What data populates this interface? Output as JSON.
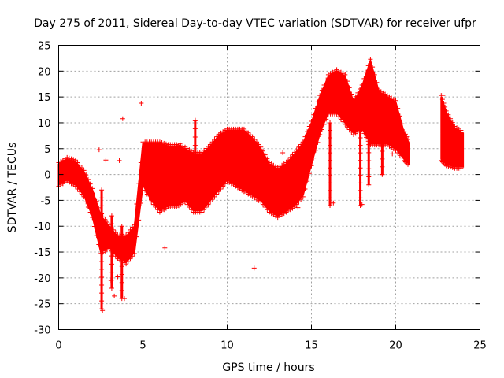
{
  "chart_data": {
    "type": "scatter",
    "title": "Day 275 of 2011, Sidereal Day-to-day VTEC variation (SDTVAR) for receiver ufpr",
    "xlabel": "GPS time / hours",
    "ylabel": "SDTVAR / TECUs",
    "xlim": [
      0,
      25
    ],
    "ylim": [
      -30,
      25
    ],
    "x_ticks": [
      "0",
      "5",
      "10",
      "15",
      "20",
      "25"
    ],
    "y_ticks": [
      "25",
      "20",
      "15",
      "10",
      "5",
      "0",
      "-5",
      "-10",
      "-15",
      "-20",
      "-25",
      "-30"
    ],
    "grid": true,
    "series_color": "#ff0000",
    "marker": "plus",
    "band": {
      "x": [
        0.0,
        0.5,
        1.0,
        1.5,
        2.0,
        2.5,
        3.0,
        3.5,
        4.0,
        4.5,
        5.0,
        5.5,
        6.0,
        6.5,
        7.0,
        7.5,
        8.0,
        8.5,
        9.0,
        9.5,
        10.0,
        10.5,
        11.0,
        11.5,
        12.0,
        12.5,
        13.0,
        13.5,
        14.0,
        14.5,
        15.0,
        15.5,
        16.0,
        16.5,
        17.0,
        17.5,
        18.0,
        18.5,
        19.0,
        19.5,
        20.0,
        20.5,
        20.8
      ],
      "top": [
        2.0,
        3.0,
        2.5,
        0.5,
        -3.0,
        -8.0,
        -10.0,
        -12.0,
        -12.0,
        -10.0,
        6.0,
        6.0,
        6.0,
        5.5,
        5.5,
        5.0,
        4.0,
        4.0,
        5.5,
        7.5,
        8.5,
        8.5,
        8.5,
        7.0,
        5.0,
        2.0,
        1.0,
        2.0,
        4.0,
        6.0,
        10.0,
        15.0,
        19.0,
        20.0,
        19.0,
        14.0,
        17.0,
        22.0,
        16.0,
        15.0,
        14.0,
        8.0,
        6.0
      ],
      "bot": [
        -2.0,
        -1.0,
        -2.0,
        -4.0,
        -8.0,
        -15.0,
        -14.0,
        -16.0,
        -17.0,
        -15.0,
        -2.0,
        -5.0,
        -7.0,
        -6.0,
        -6.0,
        -5.0,
        -7.0,
        -7.0,
        -5.0,
        -3.0,
        -1.0,
        -2.0,
        -3.0,
        -4.0,
        -5.0,
        -7.0,
        -8.0,
        -7.0,
        -6.0,
        -4.0,
        2.0,
        8.0,
        12.0,
        12.0,
        10.0,
        8.0,
        9.0,
        6.0,
        6.0,
        6.0,
        5.0,
        3.0,
        2.0
      ]
    },
    "band2": {
      "x": [
        22.7,
        23.0,
        23.5,
        24.0
      ],
      "top": [
        15.0,
        12.0,
        9.0,
        8.0
      ],
      "bot": [
        3.0,
        2.0,
        1.5,
        1.5
      ]
    },
    "outliers": [
      [
        2.4,
        4.8
      ],
      [
        2.6,
        -26.3
      ],
      [
        2.8,
        2.8
      ],
      [
        3.1,
        -20.5
      ],
      [
        3.3,
        -23.5
      ],
      [
        3.5,
        -19.8
      ],
      [
        3.6,
        2.7
      ],
      [
        3.8,
        10.8
      ],
      [
        3.9,
        -24.0
      ],
      [
        4.9,
        13.8
      ],
      [
        6.3,
        -14.2
      ],
      [
        7.2,
        6.0
      ],
      [
        8.1,
        10.4
      ],
      [
        10.0,
        8.8
      ],
      [
        11.6,
        -18.1
      ],
      [
        13.3,
        4.2
      ],
      [
        14.2,
        -6.4
      ],
      [
        16.3,
        -5.5
      ],
      [
        18.0,
        -5.8
      ],
      [
        19.2,
        0.0
      ],
      [
        19.8,
        4.0
      ],
      [
        22.8,
        15.3
      ],
      [
        23.9,
        5.0
      ]
    ],
    "spikes": [
      {
        "x": 2.55,
        "y_from": -3.0,
        "y_to": -26.0
      },
      {
        "x": 3.15,
        "y_from": -8.0,
        "y_to": -22.0
      },
      {
        "x": 3.75,
        "y_from": -10.0,
        "y_to": -24.0
      },
      {
        "x": 8.1,
        "y_from": 4.0,
        "y_to": 10.5
      },
      {
        "x": 16.1,
        "y_from": 10.0,
        "y_to": -6.0
      },
      {
        "x": 17.9,
        "y_from": 10.0,
        "y_to": -6.0
      },
      {
        "x": 18.4,
        "y_from": 12.0,
        "y_to": -2.0
      },
      {
        "x": 19.2,
        "y_from": 12.0,
        "y_to": 0.0
      }
    ]
  }
}
